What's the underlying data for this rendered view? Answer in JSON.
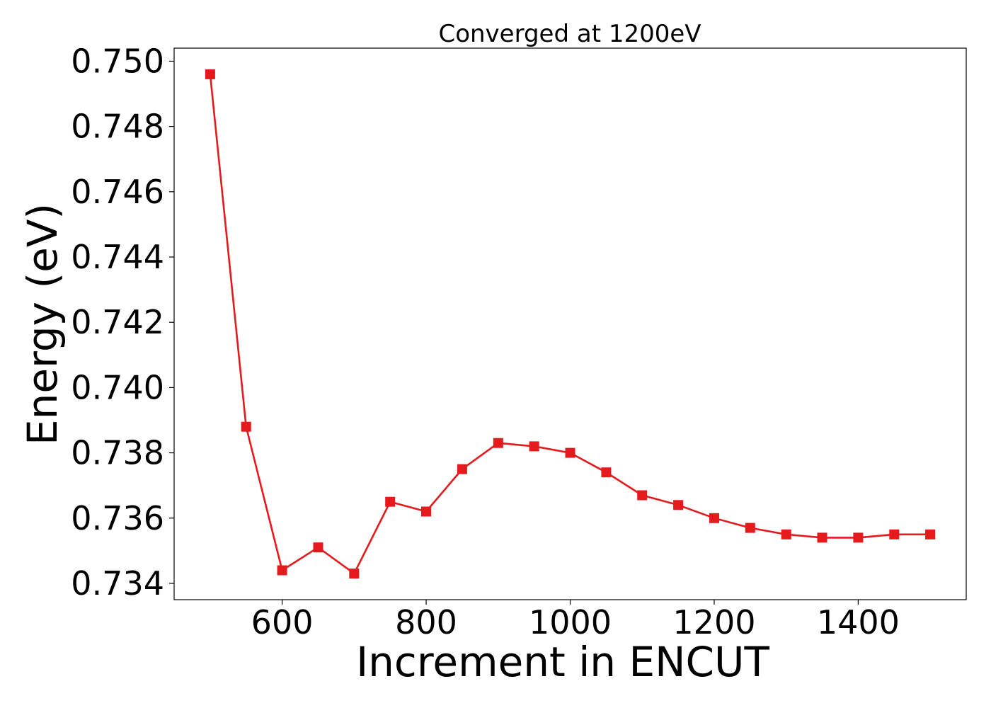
{
  "chart_data": {
    "type": "line",
    "title": "Converged at 1200eV",
    "xlabel": "Increment in ENCUT",
    "ylabel": "Energy (eV)",
    "xlim": [
      450,
      1550
    ],
    "ylim": [
      0.7335,
      0.7504
    ],
    "xticks": [
      600,
      800,
      1000,
      1200,
      1400
    ],
    "yticks": [
      0.734,
      0.736,
      0.738,
      0.74,
      0.742,
      0.744,
      0.746,
      0.748,
      0.75
    ],
    "ytick_labels": [
      "0.734",
      "0.736",
      "0.738",
      "0.740",
      "0.742",
      "0.744",
      "0.746",
      "0.748",
      "0.750"
    ],
    "grid": false,
    "legend": false,
    "series": [
      {
        "color": "#e41a1c",
        "marker": "square",
        "x": [
          500,
          550,
          600,
          650,
          700,
          750,
          800,
          850,
          900,
          950,
          1000,
          1050,
          1100,
          1150,
          1200,
          1250,
          1300,
          1350,
          1400,
          1450,
          1500
        ],
        "y": [
          0.7496,
          0.7388,
          0.7344,
          0.7351,
          0.7343,
          0.7365,
          0.7362,
          0.7375,
          0.7383,
          0.7382,
          0.738,
          0.7374,
          0.7367,
          0.7364,
          0.736,
          0.7357,
          0.7355,
          0.7354,
          0.7354,
          0.7355,
          0.7355
        ]
      }
    ]
  }
}
